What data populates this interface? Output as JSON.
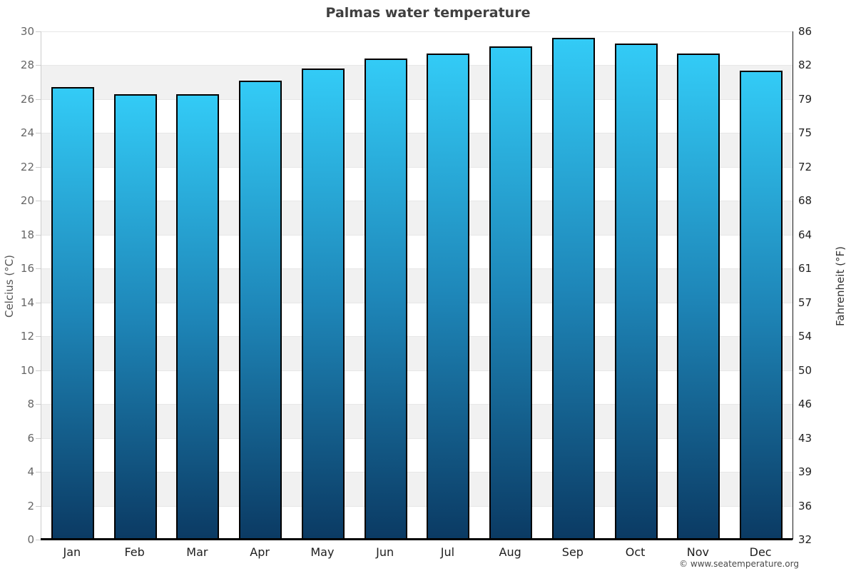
{
  "title": "Palmas water temperature",
  "copyright": "© www.seatemperature.org",
  "chart_data": {
    "type": "bar",
    "title": "Palmas water temperature",
    "categories": [
      "Jan",
      "Feb",
      "Mar",
      "Apr",
      "May",
      "Jun",
      "Jul",
      "Aug",
      "Sep",
      "Oct",
      "Nov",
      "Dec"
    ],
    "values": [
      26.7,
      26.3,
      26.3,
      27.1,
      27.8,
      28.4,
      28.7,
      29.1,
      29.6,
      29.3,
      28.7,
      27.7
    ],
    "ylabel_left": "Celcius (°C)",
    "ylabel_right": "Fahrenheit (°F)",
    "ylim": [
      0,
      30
    ],
    "ytick_step": 2,
    "yticks_celsius": [
      30,
      28,
      26,
      24,
      22,
      20,
      18,
      16,
      14,
      12,
      10,
      8,
      6,
      4,
      2,
      0
    ],
    "yticks_fahrenheit": [
      86,
      82,
      79,
      75,
      72,
      68,
      64,
      61,
      57,
      54,
      50,
      46,
      43,
      39,
      36,
      32
    ],
    "grid": "alternating-horizontal-bands",
    "legend": "none",
    "colors": {
      "bar_gradient_top": "#33cbf6",
      "bar_gradient_mid": "#1e86b8",
      "bar_gradient_bottom": "#0b3a63",
      "bar_border": "#000000",
      "band_gray": "#f1f1f1",
      "band_white": "#ffffff",
      "left_axis_line": "#cccccc",
      "right_axis_line": "#1a1a1a",
      "bottom_axis_line": "#000000",
      "title_color": "#3f3f3f"
    }
  }
}
